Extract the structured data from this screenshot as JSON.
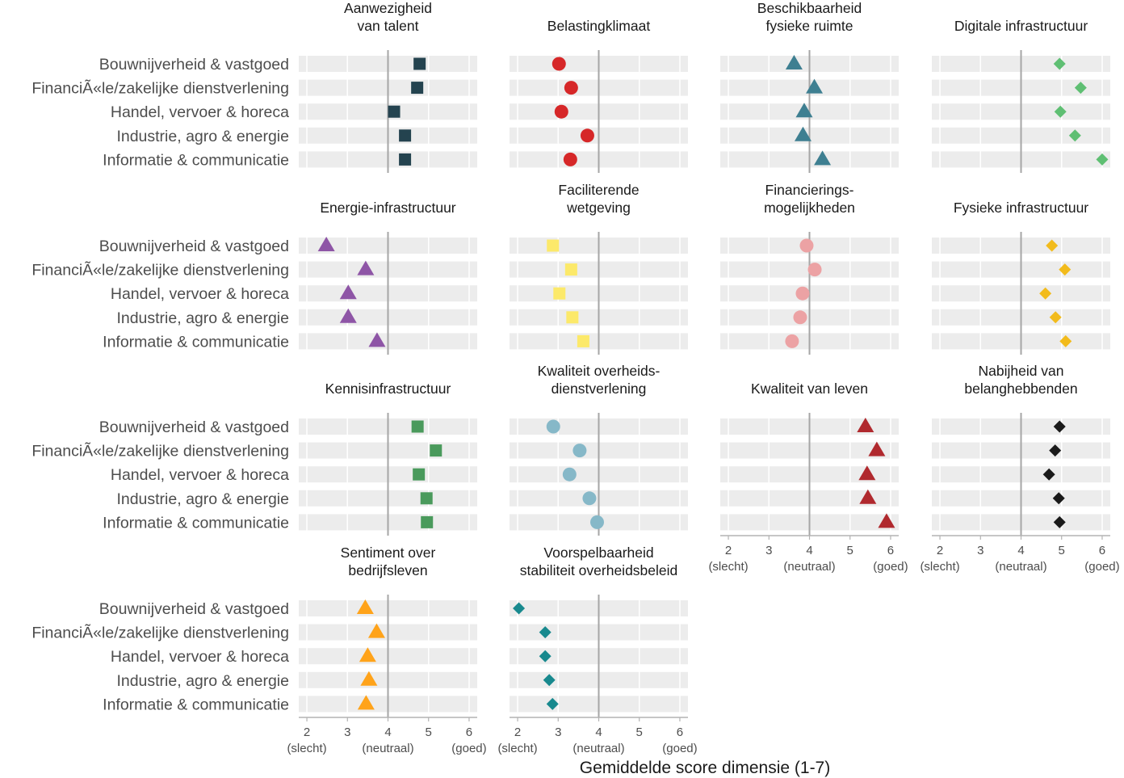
{
  "chart_data": {
    "type": "scatter",
    "xlabel": "Gemiddelde score dimensie (1-7)",
    "xlim": [
      1.8,
      6.2
    ],
    "x_ticks": [
      2,
      3,
      4,
      5,
      6
    ],
    "x_tick_labels": [
      "2\n(slecht)",
      "3",
      "4\n(neutraal)",
      "5",
      "6\n(goed)"
    ],
    "reference_line": 4,
    "grid": true,
    "categories": [
      "Bouwnijverheid & vastgoed",
      "FinanciÃ«le/zakelijke dienstverlening",
      "Handel, vervoer & horeca",
      "Industrie, agro & energie",
      "Informatie & communicatie"
    ],
    "panels": [
      {
        "title": "Aanwezigheid\nvan talent",
        "shape": "square",
        "color": "#24434f",
        "values": [
          4.78,
          4.72,
          4.15,
          4.42,
          4.42
        ]
      },
      {
        "title": "Belastingklimaat",
        "shape": "circle",
        "color": "#d62728",
        "values": [
          3.02,
          3.32,
          3.08,
          3.72,
          3.3
        ]
      },
      {
        "title": "Beschikbaarheid\nfysieke ruimte",
        "shape": "triangle",
        "color": "#3e7f91",
        "values": [
          3.62,
          4.12,
          3.87,
          3.84,
          4.32
        ]
      },
      {
        "title": "Digitale infrastructuur",
        "shape": "diamond",
        "color": "#5fbf73",
        "values": [
          4.95,
          5.47,
          4.97,
          5.33,
          6.0
        ]
      },
      {
        "title": "Energie-infrastructuur",
        "shape": "triangle",
        "color": "#8e55a6",
        "values": [
          2.48,
          3.45,
          3.02,
          3.02,
          3.73
        ]
      },
      {
        "title": "Faciliterende\nwetgeving",
        "shape": "square",
        "color": "#fce96a",
        "values": [
          2.87,
          3.32,
          3.03,
          3.35,
          3.62
        ]
      },
      {
        "title": "Financierings-\nmogelijkheden",
        "shape": "circle",
        "color": "#eca2a4",
        "values": [
          3.93,
          4.13,
          3.83,
          3.77,
          3.57
        ]
      },
      {
        "title": "Fysieke infrastructuur",
        "shape": "diamond",
        "color": "#f2bb1c",
        "values": [
          4.76,
          5.08,
          4.6,
          4.85,
          5.1
        ]
      },
      {
        "title": "Kennisinfrastructuur",
        "shape": "square",
        "color": "#4a9a5c",
        "values": [
          4.73,
          5.18,
          4.76,
          4.95,
          4.96
        ]
      },
      {
        "title": "Kwaliteit overheids-\ndienstverlening",
        "shape": "circle",
        "color": "#86b8c8",
        "values": [
          2.88,
          3.53,
          3.28,
          3.77,
          3.96
        ]
      },
      {
        "title": "Kwaliteit van leven",
        "shape": "triangle",
        "color": "#b0292e",
        "values": [
          5.38,
          5.66,
          5.42,
          5.44,
          5.9
        ]
      },
      {
        "title": "Nabijheid van\nbelanghebbenden",
        "shape": "diamond",
        "color": "#1a1a1a",
        "values": [
          4.95,
          4.84,
          4.69,
          4.93,
          4.95
        ]
      },
      {
        "title": "Sentiment over\nbedrijfsleven",
        "shape": "triangle",
        "color": "#ffa31a",
        "values": [
          3.44,
          3.72,
          3.5,
          3.53,
          3.46
        ]
      },
      {
        "title": "Voorspelbaarheid\nstabiliteit overheidsbeleid",
        "shape": "diamond",
        "color": "#18898e",
        "values": [
          2.03,
          2.68,
          2.68,
          2.78,
          2.86
        ]
      }
    ]
  }
}
